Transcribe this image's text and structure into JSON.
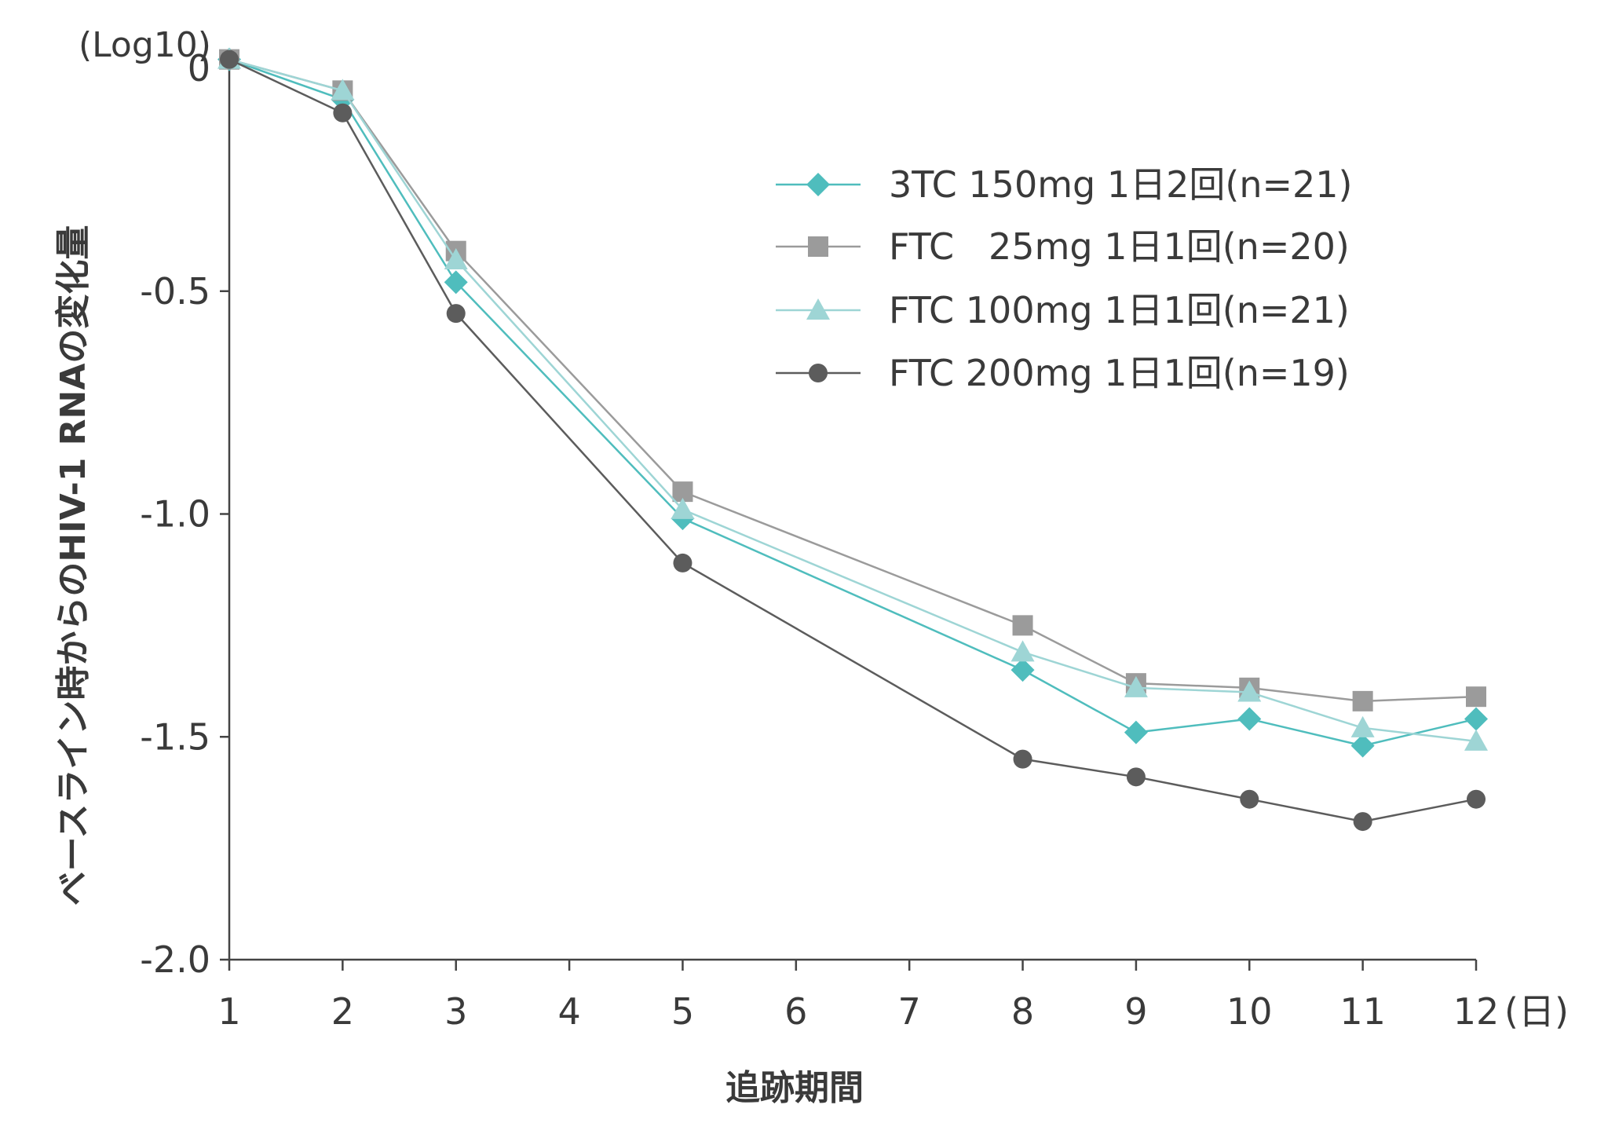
{
  "chart_data": {
    "type": "line",
    "xlabel": "追跡期間",
    "ylabel": "ベースライン時からのHIV-1 RNAの変化量",
    "y_unit": "(Log10)",
    "x_unit": "(日)",
    "x_ticks": [
      "1",
      "2",
      "3",
      "4",
      "5",
      "6",
      "7",
      "8",
      "9",
      "10",
      "11",
      "12"
    ],
    "y_ticks": [
      "0",
      "-0.5",
      "-1.0",
      "-1.5",
      "-2.0"
    ],
    "xlim": [
      1,
      12
    ],
    "ylim": [
      -2.0,
      0.0
    ],
    "grid": false,
    "legend_position": "top-right",
    "series": [
      {
        "name": "3TC 150mg 1日2回(n=21)",
        "color": "#4fbdbd",
        "marker": "diamond",
        "x": [
          1,
          2,
          3,
          5,
          8,
          9,
          10,
          11,
          12
        ],
        "values": [
          0.02,
          -0.07,
          -0.48,
          -1.01,
          -1.35,
          -1.49,
          -1.46,
          -1.52,
          -1.46
        ]
      },
      {
        "name": "FTC   25mg 1日1回(n=20)",
        "color": "#9b9b9b",
        "marker": "square",
        "x": [
          1,
          2,
          3,
          5,
          8,
          9,
          10,
          11,
          12
        ],
        "values": [
          0.02,
          -0.05,
          -0.41,
          -0.95,
          -1.25,
          -1.38,
          -1.39,
          -1.42,
          -1.41
        ]
      },
      {
        "name": "FTC 100mg 1日1回(n=21)",
        "color": "#9ed5d5",
        "marker": "triangle",
        "x": [
          1,
          2,
          3,
          5,
          8,
          9,
          10,
          11,
          12
        ],
        "values": [
          0.02,
          -0.05,
          -0.43,
          -0.99,
          -1.31,
          -1.39,
          -1.4,
          -1.48,
          -1.51
        ]
      },
      {
        "name": "FTC 200mg 1日1回(n=19)",
        "color": "#5c5c5c",
        "marker": "circle",
        "x": [
          1,
          2,
          3,
          5,
          8,
          9,
          10,
          11,
          12
        ],
        "values": [
          0.02,
          -0.1,
          -0.55,
          -1.11,
          -1.55,
          -1.59,
          -1.64,
          -1.69,
          -1.64
        ]
      }
    ]
  }
}
